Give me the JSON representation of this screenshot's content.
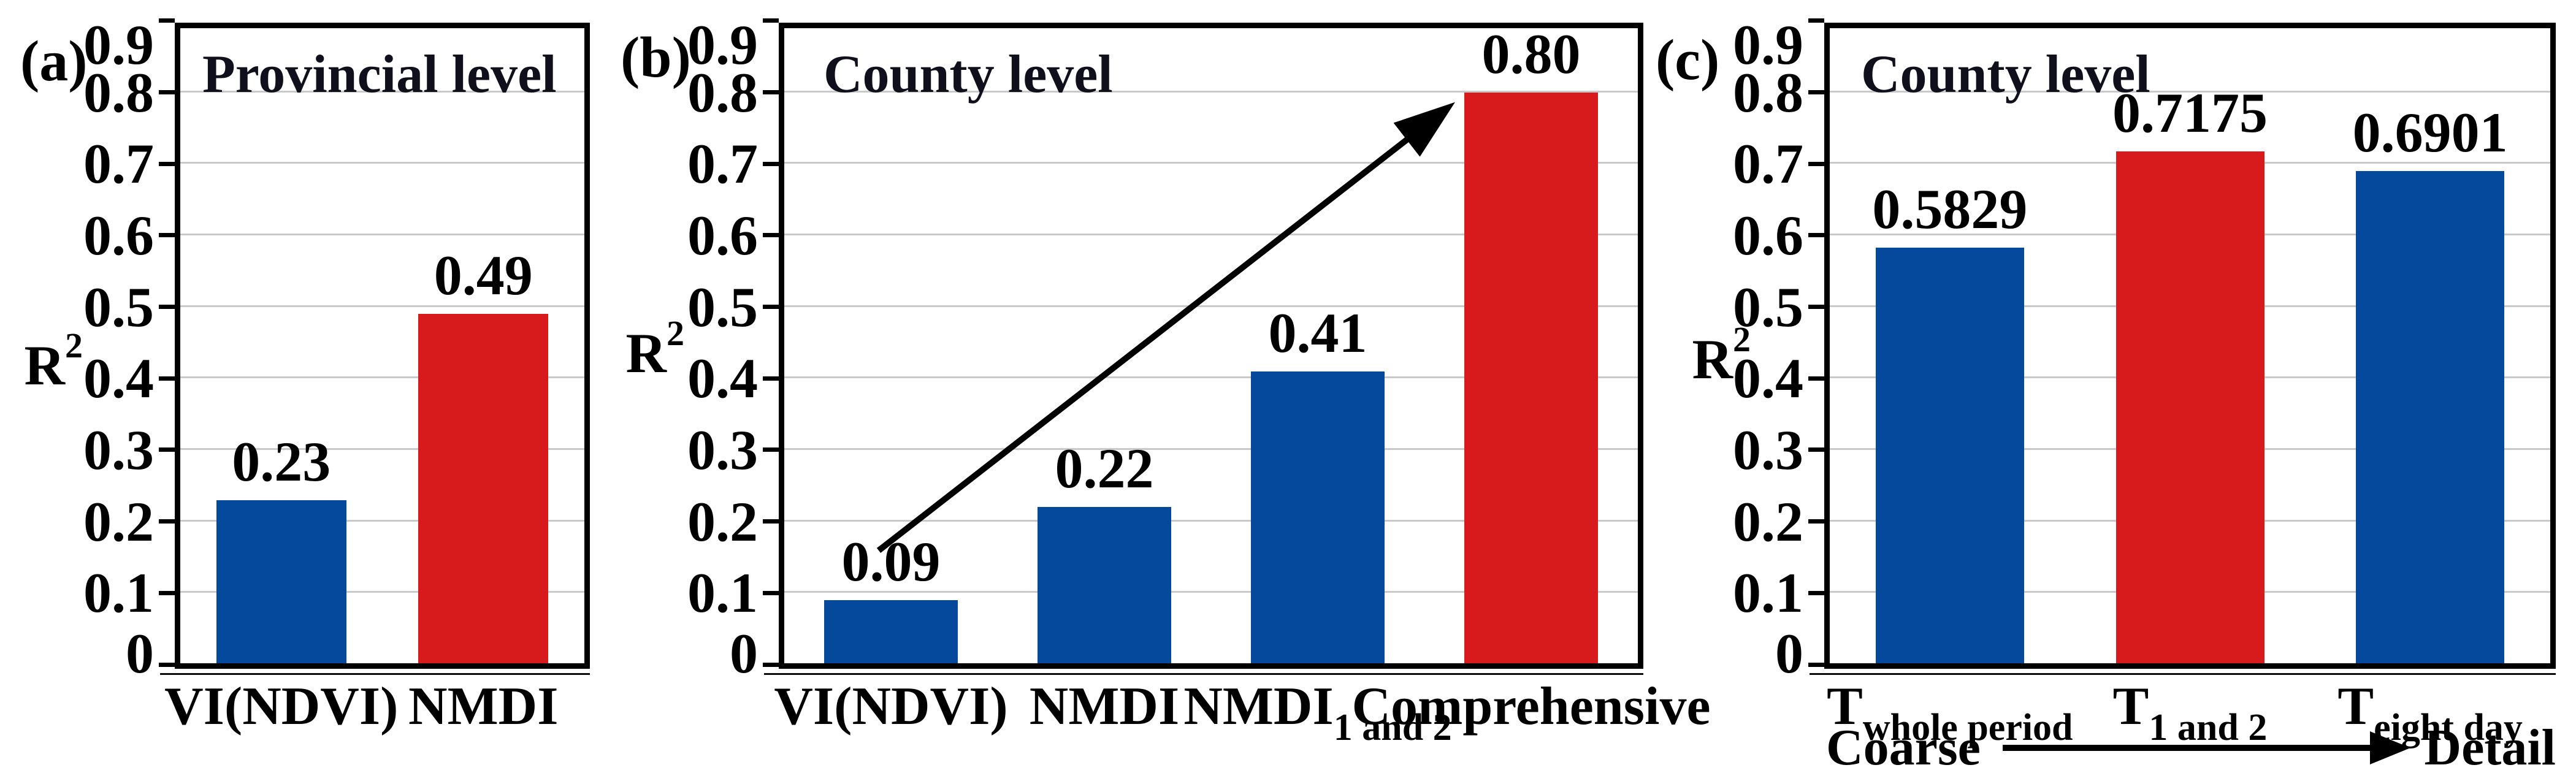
{
  "axis": {
    "label_base": "R",
    "label_sup": "2",
    "tick_labels": [
      "0",
      "0.1",
      "0.2",
      "0.3",
      "0.4",
      "0.5",
      "0.6",
      "0.7",
      "0.8",
      "0.9"
    ]
  },
  "colors": {
    "bar_blue": "#04499b",
    "bar_red": "#d71b1c",
    "grid": "#c7c9cb",
    "frame": "#000000"
  },
  "chart_data": [
    {
      "type": "bar",
      "panel_letter": "(a)",
      "title": "Provincial level",
      "ylabel": "R2",
      "ylim": [
        0,
        0.9
      ],
      "grid": true,
      "legend": "none",
      "categories": [
        "VI(NDVI)",
        "NMDI"
      ],
      "category_segments": [
        [
          {
            "text": "VI(NDVI)"
          }
        ],
        [
          {
            "text": "NMDI"
          }
        ]
      ],
      "values": [
        0.23,
        0.49
      ],
      "value_labels": [
        "0.23",
        "0.49"
      ],
      "bar_colors": [
        "blue",
        "red"
      ]
    },
    {
      "type": "bar",
      "panel_letter": "(b)",
      "title": "County level",
      "ylabel": "R2",
      "ylim": [
        0,
        0.9
      ],
      "grid": true,
      "legend": "none",
      "categories": [
        "VI(NDVI)",
        "NMDI",
        "NMDI 1 and 2",
        "Comprehensive"
      ],
      "category_segments": [
        [
          {
            "text": "VI(NDVI)"
          }
        ],
        [
          {
            "text": "NMDI"
          }
        ],
        [
          {
            "text": "NMDI"
          },
          {
            "text": "1 and 2",
            "sub": true
          }
        ],
        [
          {
            "text": "Comprehensive"
          }
        ]
      ],
      "values": [
        0.09,
        0.22,
        0.41,
        0.8
      ],
      "value_labels": [
        "0.09",
        "0.22",
        "0.41",
        "0.80"
      ],
      "bar_colors": [
        "blue",
        "blue",
        "blue",
        "red"
      ],
      "annotation": "diagonal arrow from VI(NDVI) bar up to Comprehensive bar"
    },
    {
      "type": "bar",
      "panel_letter": "(c)",
      "title": "County level",
      "ylabel": "R2",
      "ylim": [
        0,
        0.9
      ],
      "grid": true,
      "legend": "none",
      "categories": [
        "T whole period",
        "T 1 and 2",
        "T eight day"
      ],
      "category_segments": [
        [
          {
            "text": "T"
          },
          {
            "text": "whole period",
            "sub": true
          }
        ],
        [
          {
            "text": "T"
          },
          {
            "text": "1 and 2",
            "sub": true
          }
        ],
        [
          {
            "text": "T"
          },
          {
            "text": "eight day",
            "sub": true
          }
        ]
      ],
      "values": [
        0.5829,
        0.7175,
        0.6901
      ],
      "value_labels": [
        "0.5829",
        "0.7175",
        "0.6901"
      ],
      "bar_colors": [
        "blue",
        "red",
        "blue"
      ],
      "footer": {
        "left": "Coarse",
        "right": "Detail",
        "annotation": "horizontal arrow from Coarse to Detail"
      }
    }
  ]
}
